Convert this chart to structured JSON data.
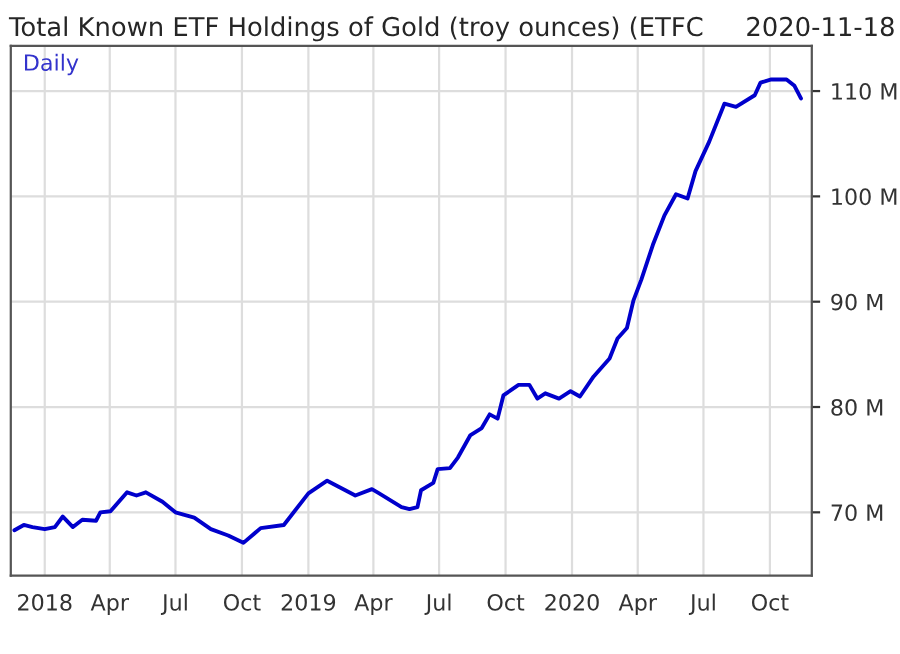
{
  "chart_data": {
    "type": "line",
    "title": "Total Known ETF Holdings of Gold (troy ounces) (ETFC",
    "subtitle": "2020-11-18",
    "annotations": [
      "Daily"
    ],
    "x": [
      "2017-11-20",
      "2017-12-03",
      "2017-12-15",
      "2018-01-01",
      "2018-01-15",
      "2018-01-26",
      "2018-02-09",
      "2018-02-22",
      "2018-03-13",
      "2018-03-19",
      "2018-04-02",
      "2018-04-25",
      "2018-05-08",
      "2018-05-21",
      "2018-06-13",
      "2018-07-01",
      "2018-07-27",
      "2018-08-19",
      "2018-09-12",
      "2018-10-03",
      "2018-10-27",
      "2018-11-28",
      "2019-01-01",
      "2019-01-27",
      "2019-03-07",
      "2019-03-30",
      "2019-04-09",
      "2019-05-10",
      "2019-05-21",
      "2019-06-01",
      "2019-06-06",
      "2019-06-23",
      "2019-06-29",
      "2019-07-16",
      "2019-07-27",
      "2019-08-13",
      "2019-08-29",
      "2019-09-09",
      "2019-09-20",
      "2019-09-28",
      "2019-10-19",
      "2019-11-03",
      "2019-11-14",
      "2019-11-25",
      "2019-12-14",
      "2019-12-30",
      "2020-01-12",
      "2020-01-31",
      "2020-02-22",
      "2020-03-04",
      "2020-03-17",
      "2020-03-26",
      "2020-04-06",
      "2020-04-22",
      "2020-05-08",
      "2020-05-24",
      "2020-06-09",
      "2020-06-20",
      "2020-07-09",
      "2020-07-30",
      "2020-08-15",
      "2020-09-10",
      "2020-09-18",
      "2020-10-03",
      "2020-10-24",
      "2020-11-04",
      "2020-11-13"
    ],
    "series": [
      {
        "color": "#0000cc",
        "values": [
          68.3,
          68.8,
          68.6,
          68.4,
          68.6,
          69.6,
          68.6,
          69.3,
          69.2,
          70.0,
          70.1,
          71.9,
          71.6,
          71.9,
          71.0,
          70.0,
          69.5,
          68.4,
          67.8,
          67.1,
          68.5,
          68.8,
          71.8,
          73.0,
          71.6,
          72.2,
          71.8,
          70.5,
          70.3,
          70.5,
          72.1,
          72.8,
          74.1,
          74.2,
          75.2,
          77.3,
          78.0,
          79.3,
          78.9,
          81.1,
          82.1,
          82.1,
          80.8,
          81.3,
          80.8,
          81.5,
          81.0,
          82.9,
          84.6,
          86.5,
          87.5,
          90.1,
          92.1,
          95.4,
          98.2,
          100.2,
          99.8,
          102.4,
          105.2,
          108.8,
          108.5,
          109.6,
          110.8,
          111.1,
          111.1,
          110.5,
          109.3
        ]
      }
    ],
    "xlim": [
      "2017-11-15",
      "2020-11-28"
    ],
    "xticks": [
      {
        "value": "2018-01-01",
        "label": "2018"
      },
      {
        "value": "2018-04-01",
        "label": "Apr"
      },
      {
        "value": "2018-07-01",
        "label": "Jul"
      },
      {
        "value": "2018-10-01",
        "label": "Oct"
      },
      {
        "value": "2019-01-01",
        "label": "2019"
      },
      {
        "value": "2019-04-01",
        "label": "Apr"
      },
      {
        "value": "2019-07-01",
        "label": "Jul"
      },
      {
        "value": "2019-10-01",
        "label": "Oct"
      },
      {
        "value": "2020-01-01",
        "label": "2020"
      },
      {
        "value": "2020-04-01",
        "label": "Apr"
      },
      {
        "value": "2020-07-01",
        "label": "Jul"
      },
      {
        "value": "2020-10-01",
        "label": "Oct"
      }
    ],
    "ylim": [
      64,
      114.3
    ],
    "yticks": [
      {
        "value": 70,
        "label": "70 M"
      },
      {
        "value": 80,
        "label": "80 M"
      },
      {
        "value": 90,
        "label": "90 M"
      },
      {
        "value": 100,
        "label": "100 M"
      },
      {
        "value": 110,
        "label": "110 M"
      }
    ],
    "grid": true,
    "legend": false,
    "marker": "none",
    "line_style": "solid"
  }
}
